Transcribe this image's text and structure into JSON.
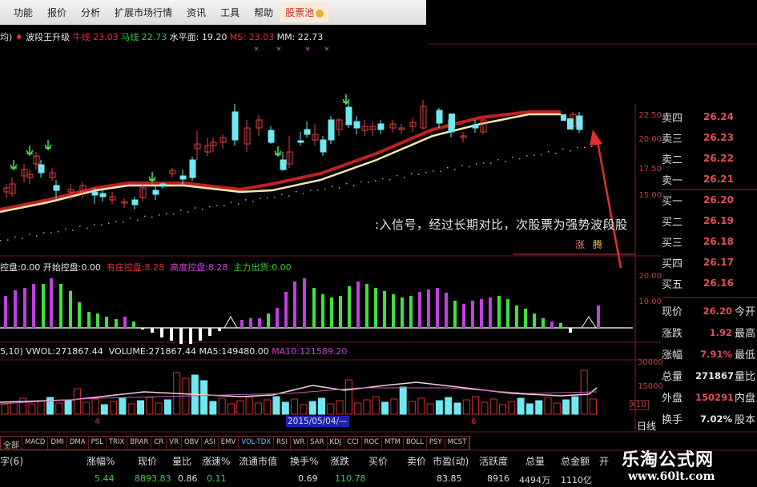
{
  "menu": {
    "items": [
      "功能",
      "报价",
      "分析",
      "扩展市场行情",
      "资讯",
      "工具",
      "帮助"
    ],
    "highlight": "股票池"
  },
  "indicator_line": {
    "prefix": "均)",
    "name": "波段王升级",
    "niu_label": "牛线",
    "niu_value": "23.03",
    "ma_label": "马线",
    "ma_value": "22.73",
    "level_label": "水平面:",
    "level_value": "19.20",
    "ms_label": "MS:",
    "ms_value": "23.03",
    "mm_label": "MM:",
    "mm_value": "22.73"
  },
  "price_axis": [
    "22.50",
    "20.00",
    "17.50",
    "15.00"
  ],
  "order_book": [
    {
      "label": "卖四",
      "value": "26.24"
    },
    {
      "label": "卖三",
      "value": "26.23"
    },
    {
      "label": "卖二",
      "value": "26.22"
    },
    {
      "label": "卖一",
      "value": "26.21"
    },
    {
      "label": "买一",
      "value": "26.20"
    },
    {
      "label": "买二",
      "value": "26.19"
    },
    {
      "label": "买三",
      "value": "26.18"
    },
    {
      "label": "买四",
      "value": "26.17"
    },
    {
      "label": "买五",
      "value": "26.16"
    }
  ],
  "annotation": ":入信号，经过长期对比，次股票为强势波段股",
  "annotation2": {
    "a": "涨",
    "b": "腾"
  },
  "sub_indicator": {
    "a_label": "控盘:",
    "a_value": "0.00",
    "b_label": "开始控盘:",
    "b_value": "0.00",
    "c_label": "有庄控盘:",
    "c_value": "8.28",
    "d_label": "高度控盘:",
    "d_value": "8.28",
    "e_label": "主力出货:",
    "e_value": "0.00"
  },
  "sub_axis": [
    "20.00",
    "10.00"
  ],
  "volume_header": {
    "prefix": "5,10)",
    "vwol_label": "VWOL:",
    "vwol_value": "271867.44",
    "volume_label": "VOLUME:",
    "volume_value": "271867.44",
    "ma5_label": "MA5:",
    "ma5_value": "149480.00",
    "ma10_label": "MA10:",
    "ma10_value": "121589.20"
  },
  "volume_axis": [
    "30000",
    "15000",
    "X10"
  ],
  "date_axis": {
    "m4": "4",
    "cursor": "2015/05/04/—",
    "m6": "6",
    "period": "日线"
  },
  "quote": [
    {
      "label": "现价",
      "value": "26.20",
      "right": "今开",
      "color": "#e05050"
    },
    {
      "label": "涨跌",
      "value": "1.92",
      "right": "最高",
      "color": "#e05050"
    },
    {
      "label": "涨幅",
      "value": "7.91%",
      "right": "最低",
      "color": "#e05050"
    },
    {
      "label": "总量",
      "value": "271867",
      "right": "量比",
      "color": "#e8e8e8"
    },
    {
      "label": "外盘",
      "value": "150291",
      "right": "内盘",
      "color": "#e05050"
    },
    {
      "label": "换手",
      "value": "7.02%",
      "right": "股本",
      "color": "#e8e8e8"
    }
  ],
  "tabs": [
    "全部",
    "MACD",
    "DMI",
    "DMA",
    "PSL",
    "TRIX",
    "BRAR",
    "CR",
    "VR",
    "OBV",
    "ASI",
    "EMV",
    "VOL-TDX",
    "RSI",
    "WR",
    "SAR",
    "KDJ",
    "CCI",
    "ROC",
    "MTM",
    "BOLL",
    "PSY",
    "MCST"
  ],
  "selected_tab": "VOL-TDX",
  "table": {
    "headers": [
      "字(6)",
      "涨幅%",
      "现价",
      "量比",
      "涨速%",
      "流通市值",
      "换手%",
      "涨跌",
      "买价",
      "卖价",
      "市盈(动)",
      "活跃度",
      "总量",
      "总金额",
      "开"
    ],
    "row": [
      "5.44",
      "8893.83",
      "0.86",
      "0.11",
      "0.69",
      "110.78",
      "83.85",
      "8916",
      "4494万",
      "1110亿"
    ]
  },
  "watermark": {
    "name": "乐淘公式网",
    "url": "www.60lt.com"
  },
  "colors": {
    "up": "#e04040",
    "down": "#70e8f0",
    "ma_yellow": "#f5e6b0",
    "ma_red": "#c02020",
    "hist_magenta": "#c040e0",
    "hist_green": "#40e040"
  }
}
